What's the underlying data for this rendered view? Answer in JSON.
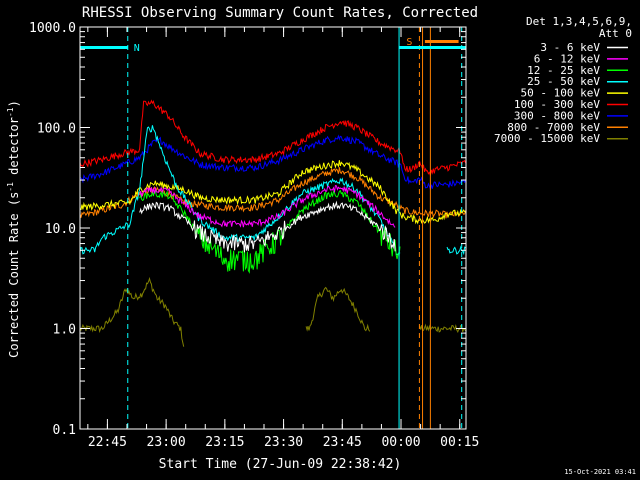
{
  "chart_data": {
    "type": "line",
    "title": "RHESSI Observing Summary Count Rates, Corrected",
    "xlabel": "Start Time (27-Jun-09 22:38:42)",
    "ylabel_parts": [
      "Corrected Count Rate (s",
      "-1",
      " detector",
      "-1",
      ")"
    ],
    "yscale": "log",
    "ylim": [
      0.1,
      1000
    ],
    "y_ticks": [
      {
        "value": 0.1,
        "label": "0.1"
      },
      {
        "value": 1,
        "label": "1.0"
      },
      {
        "value": 10,
        "label": "10.0"
      },
      {
        "value": 100,
        "label": "100.0"
      },
      {
        "value": 1000,
        "label": "1000.0"
      }
    ],
    "xlim_minutes": [
      -0.7,
      97.9
    ],
    "x_ticks": [
      {
        "minutes": 6.3,
        "label": "22:45"
      },
      {
        "minutes": 21.3,
        "label": "23:00"
      },
      {
        "minutes": 36.3,
        "label": "23:15"
      },
      {
        "minutes": 51.3,
        "label": "23:30"
      },
      {
        "minutes": 66.3,
        "label": "23:45"
      },
      {
        "minutes": 81.3,
        "label": "00:00"
      },
      {
        "minutes": 96.3,
        "label": "00:15"
      }
    ],
    "legend": {
      "header": [
        "Det 1,3,4,5,6,9,",
        "Att 0"
      ],
      "position": "right"
    },
    "series": [
      {
        "name": "3 - 6 keV",
        "color": "#ffffff",
        "edge": 15,
        "peak": 18,
        "min": 7,
        "noise": 0.07,
        "points": [
          [
            -0.7,
            null
          ],
          [
            12,
            null
          ],
          [
            14.5,
            15
          ],
          [
            18,
            17
          ],
          [
            22,
            16
          ],
          [
            26,
            12
          ],
          [
            30,
            9
          ],
          [
            36,
            7
          ],
          [
            44,
            7
          ],
          [
            50,
            9
          ],
          [
            56,
            13
          ],
          [
            62,
            16
          ],
          [
            66,
            17
          ],
          [
            70,
            15
          ],
          [
            76,
            10
          ],
          [
            80,
            7
          ],
          [
            82,
            null
          ]
        ]
      },
      {
        "name": "6 - 12 keV",
        "color": "#ff00ff",
        "edge": 14,
        "points": [
          [
            -0.7,
            null
          ],
          [
            12,
            null
          ],
          [
            14.5,
            22
          ],
          [
            18,
            24
          ],
          [
            22,
            23
          ],
          [
            26,
            17
          ],
          [
            30,
            13
          ],
          [
            36,
            11
          ],
          [
            44,
            11
          ],
          [
            50,
            13
          ],
          [
            56,
            19
          ],
          [
            62,
            24
          ],
          [
            66,
            25
          ],
          [
            70,
            22
          ],
          [
            76,
            14
          ],
          [
            80,
            10
          ],
          [
            82,
            null
          ]
        ]
      },
      {
        "name": "12 - 25 keV",
        "color": "#00ff00",
        "points": [
          [
            -0.7,
            null
          ],
          [
            12,
            null
          ],
          [
            14.5,
            20
          ],
          [
            18,
            22
          ],
          [
            22,
            21
          ],
          [
            26,
            14
          ],
          [
            30,
            8
          ],
          [
            36,
            5
          ],
          [
            44,
            5
          ],
          [
            50,
            8
          ],
          [
            56,
            15
          ],
          [
            62,
            21
          ],
          [
            66,
            22
          ],
          [
            70,
            18
          ],
          [
            76,
            9
          ],
          [
            80,
            6
          ],
          [
            81.3,
            5
          ],
          [
            82,
            null
          ]
        ]
      },
      {
        "name": "25 - 50 keV",
        "color": "#00ffff",
        "points": [
          [
            -0.7,
            6
          ],
          [
            3,
            6
          ],
          [
            5,
            8
          ],
          [
            12,
            11
          ],
          [
            14.5,
            24
          ],
          [
            16.5,
            95
          ],
          [
            18,
            100
          ],
          [
            20.5,
            55
          ],
          [
            24,
            26
          ],
          [
            30,
            12
          ],
          [
            36,
            8
          ],
          [
            44,
            8
          ],
          [
            50,
            13
          ],
          [
            56,
            22
          ],
          [
            62,
            27
          ],
          [
            66,
            30
          ],
          [
            70,
            24
          ],
          [
            76,
            12
          ],
          [
            80,
            6
          ],
          [
            81.3,
            5.5
          ],
          [
            82,
            null
          ],
          [
            93,
            null
          ],
          [
            93,
            6
          ],
          [
            98,
            6
          ]
        ]
      },
      {
        "name": "50 - 100 keV",
        "color": "#ffff00",
        "points": [
          [
            -0.7,
            16
          ],
          [
            12,
            18
          ],
          [
            14.5,
            24
          ],
          [
            18,
            28
          ],
          [
            22,
            26
          ],
          [
            26,
            24
          ],
          [
            30,
            20
          ],
          [
            36,
            19
          ],
          [
            44,
            19
          ],
          [
            50,
            22
          ],
          [
            56,
            36
          ],
          [
            62,
            42
          ],
          [
            66,
            45
          ],
          [
            70,
            38
          ],
          [
            76,
            25
          ],
          [
            80,
            15
          ],
          [
            82,
            13
          ],
          [
            86,
            12
          ],
          [
            90,
            12
          ],
          [
            93,
            14
          ],
          [
            98,
            14
          ]
        ]
      },
      {
        "name": "100 - 300 keV",
        "color": "#ff0000",
        "points": [
          [
            -0.7,
            43
          ],
          [
            5,
            48
          ],
          [
            10,
            55
          ],
          [
            14.5,
            60
          ],
          [
            15.5,
            170
          ],
          [
            18,
            175
          ],
          [
            22,
            130
          ],
          [
            26,
            80
          ],
          [
            30,
            55
          ],
          [
            36,
            48
          ],
          [
            44,
            48
          ],
          [
            50,
            55
          ],
          [
            56,
            75
          ],
          [
            62,
            100
          ],
          [
            66,
            115
          ],
          [
            70,
            100
          ],
          [
            76,
            70
          ],
          [
            80,
            60
          ],
          [
            81.3,
            58
          ],
          [
            82,
            40
          ],
          [
            84,
            38
          ],
          [
            86,
            45
          ],
          [
            88,
            35
          ],
          [
            90,
            38
          ],
          [
            93,
            40
          ],
          [
            98,
            45
          ]
        ]
      },
      {
        "name": "300 - 800 keV",
        "color": "#0000ff",
        "points": [
          [
            -0.7,
            30
          ],
          [
            5,
            35
          ],
          [
            10,
            42
          ],
          [
            14.5,
            50
          ],
          [
            18,
            70
          ],
          [
            20,
            75
          ],
          [
            22,
            65
          ],
          [
            26,
            52
          ],
          [
            30,
            43
          ],
          [
            36,
            40
          ],
          [
            44,
            40
          ],
          [
            50,
            47
          ],
          [
            56,
            60
          ],
          [
            62,
            75
          ],
          [
            66,
            80
          ],
          [
            70,
            72
          ],
          [
            76,
            52
          ],
          [
            80,
            45
          ],
          [
            81.3,
            42
          ],
          [
            82,
            33
          ],
          [
            84,
            28
          ],
          [
            86,
            31
          ],
          [
            88,
            26
          ],
          [
            90,
            27
          ],
          [
            93,
            27
          ],
          [
            98,
            29
          ]
        ]
      },
      {
        "name": "800 - 7000 keV",
        "color": "#ff8000",
        "points": [
          [
            -0.7,
            13
          ],
          [
            5,
            15
          ],
          [
            10,
            17
          ],
          [
            14.5,
            22
          ],
          [
            18,
            24
          ],
          [
            22,
            22
          ],
          [
            26,
            18
          ],
          [
            30,
            17
          ],
          [
            36,
            16
          ],
          [
            44,
            16
          ],
          [
            50,
            19
          ],
          [
            56,
            28
          ],
          [
            62,
            35
          ],
          [
            66,
            38
          ],
          [
            70,
            32
          ],
          [
            76,
            20
          ],
          [
            80,
            17
          ],
          [
            82,
            15
          ],
          [
            86,
            14
          ],
          [
            90,
            14
          ],
          [
            93,
            13.5
          ],
          [
            98,
            14
          ]
        ]
      },
      {
        "name": "7000 - 15000 keV",
        "color": "#808000",
        "points": [
          [
            -0.7,
            1
          ],
          [
            3,
            1
          ],
          [
            5,
            1
          ],
          [
            9,
            1.5
          ],
          [
            11,
            2.5
          ],
          [
            13,
            2
          ],
          [
            15,
            2.2
          ],
          [
            17,
            3
          ],
          [
            19,
            2
          ],
          [
            21,
            1.7
          ],
          [
            23,
            1.2
          ],
          [
            25,
            1
          ],
          [
            26,
            0.6
          ],
          [
            26.5,
            null
          ],
          [
            57,
            null
          ],
          [
            57,
            1
          ],
          [
            58,
            1
          ],
          [
            60,
            2
          ],
          [
            62,
            2.5
          ],
          [
            64,
            2
          ],
          [
            66,
            2.5
          ],
          [
            68,
            2
          ],
          [
            70,
            1.5
          ],
          [
            72,
            1
          ],
          [
            73.5,
            1
          ],
          [
            74,
            null
          ],
          [
            86,
            null
          ],
          [
            86,
            1
          ],
          [
            98,
            1
          ]
        ]
      }
    ],
    "annotations": [
      {
        "text": "N",
        "color": "#00ffff"
      },
      {
        "text": "S",
        "color": "#ff8000"
      }
    ],
    "intervals": {
      "night_bars": [
        [
          -0.7,
          11.5
        ],
        [
          80.8,
          97.9
        ]
      ],
      "saa_bar": [
        87.4,
        96.0
      ],
      "night_dashed": [
        11.5,
        96.8
      ],
      "night_solid": [
        -0.7,
        80.8
      ],
      "saa_dashed": [
        86.0
      ],
      "saa_solid": [
        86.8,
        88.8
      ]
    },
    "grid": false
  },
  "footer": {
    "timestamp": "15-Oct-2021 03:41"
  }
}
